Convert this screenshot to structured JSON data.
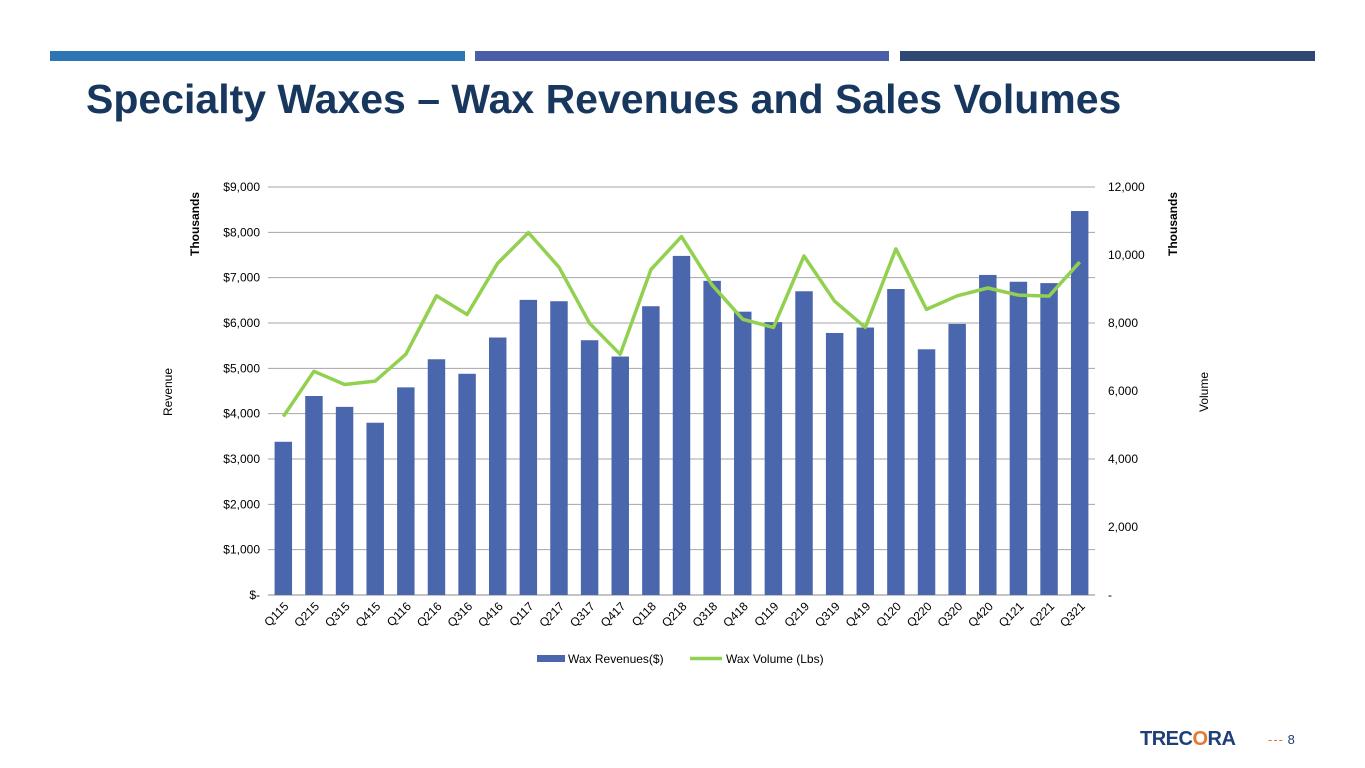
{
  "slide": {
    "title": "Specialty Waxes – Wax Revenues and Sales Volumes",
    "page_number": "8",
    "logo_text_left": "TREC",
    "logo_text_o": "O",
    "logo_text_right": "RA",
    "accent_colors": [
      "#2e75b6",
      "#4a5ea8",
      "#2f4773"
    ]
  },
  "chart_data": {
    "type": "bar",
    "title": "",
    "categories": [
      "Q115",
      "Q215",
      "Q315",
      "Q415",
      "Q116",
      "Q216",
      "Q316",
      "Q416",
      "Q117",
      "Q217",
      "Q317",
      "Q417",
      "Q118",
      "Q218",
      "Q318",
      "Q418",
      "Q119",
      "Q219",
      "Q319",
      "Q419",
      "Q120",
      "Q220",
      "Q320",
      "Q420",
      "Q121",
      "Q221",
      "Q321"
    ],
    "series": [
      {
        "name": "Wax Revenues($)",
        "type": "bar",
        "axis": "left",
        "color": "#4a66ac",
        "values": [
          3380,
          4390,
          4150,
          3800,
          4580,
          5200,
          4880,
          5680,
          6510,
          6480,
          5620,
          5260,
          6370,
          7480,
          6930,
          6250,
          6020,
          6700,
          5780,
          5900,
          6750,
          5420,
          5980,
          7060,
          6910,
          6880,
          8470
        ]
      },
      {
        "name": "Wax Volume (Lbs)",
        "type": "line",
        "axis": "right",
        "color": "#92d050",
        "values": [
          5250,
          6580,
          6190,
          6290,
          7080,
          8800,
          8250,
          9760,
          10660,
          9640,
          7990,
          7080,
          9570,
          10540,
          9120,
          8110,
          7870,
          9970,
          8640,
          7870,
          10180,
          8400,
          8800,
          9030,
          8820,
          8790,
          9790
        ]
      }
    ],
    "y_left": {
      "label": "Revenue",
      "unit_label": "Thousands",
      "min": 0,
      "max": 9000,
      "step": 1000,
      "tick_labels": [
        "$-",
        "$1,000",
        "$2,000",
        "$3,000",
        "$4,000",
        "$5,000",
        "$6,000",
        "$7,000",
        "$8,000",
        "$9,000"
      ]
    },
    "y_right": {
      "label": "Volume",
      "unit_label": "Thousands",
      "min": 0,
      "max": 12000,
      "step": 2000,
      "tick_labels": [
        "-",
        "2,000",
        "4,000",
        "6,000",
        "8,000",
        "10,000",
        "12,000"
      ]
    },
    "grid": true,
    "legend_position": "bottom"
  }
}
